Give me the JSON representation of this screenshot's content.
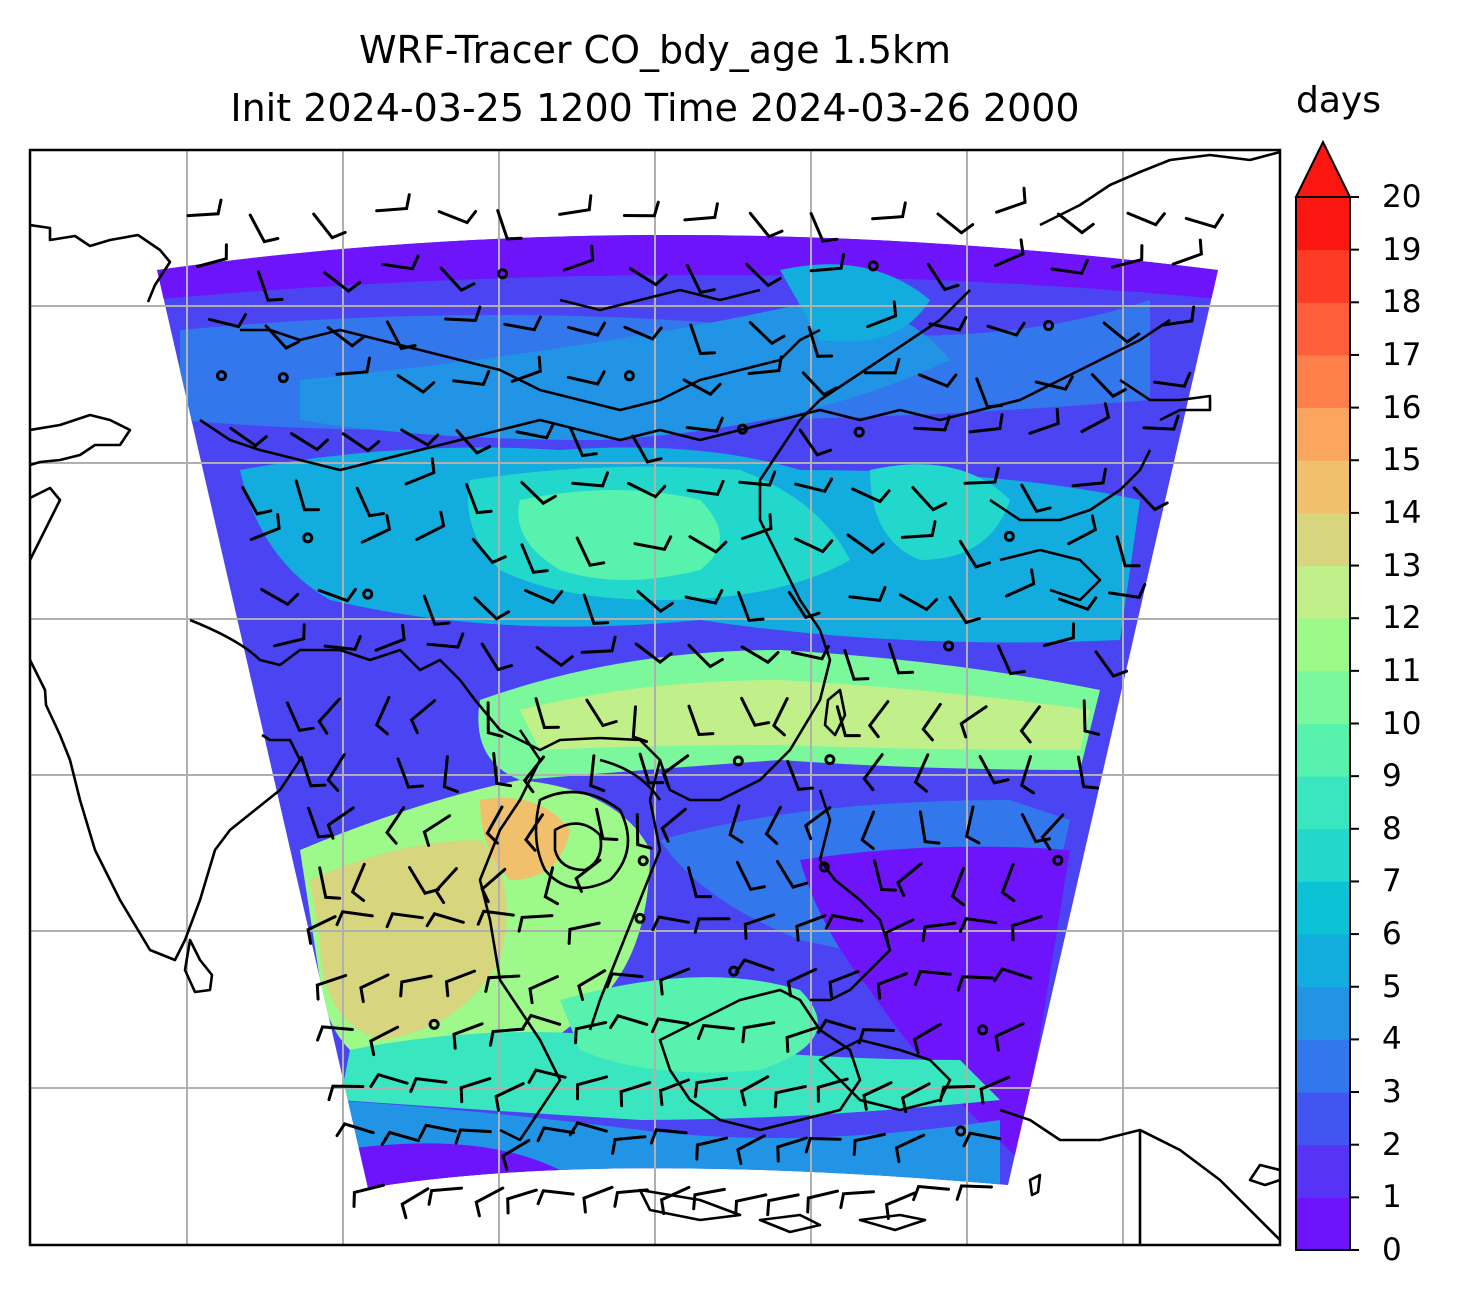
{
  "title": {
    "line1": "WRF-Tracer CO_bdy_age 1.5km",
    "line2": "Init 2024-03-25 1200 Time 2024-03-26 2000"
  },
  "colorbar": {
    "label": "days",
    "ticks": [
      "0",
      "1",
      "2",
      "3",
      "4",
      "5",
      "6",
      "7",
      "8",
      "9",
      "10",
      "11",
      "12",
      "13",
      "14",
      "15",
      "16",
      "17",
      "18",
      "19",
      "20"
    ],
    "extend": "max",
    "colors": [
      "#6e14fb",
      "#5733f6",
      "#4156f0",
      "#3277ec",
      "#2294e6",
      "#13acdf",
      "#0cc3d6",
      "#22d8cc",
      "#39e6bf",
      "#57f2ad",
      "#7af89b",
      "#9cf98a",
      "#c1f08a",
      "#d8d57f",
      "#f0c06d",
      "#fba65e",
      "#fd7f49",
      "#fe5e3a",
      "#fe3c25",
      "#fc1612"
    ],
    "over_color": "#fc1612"
  },
  "map": {
    "projection_shape": "fan",
    "gridlines": true,
    "overlays": [
      "coastlines",
      "country-borders",
      "wind-barbs"
    ],
    "background": "#ffffff",
    "frame_color": "#000000",
    "gridline_color": "#b0b0b0"
  }
}
